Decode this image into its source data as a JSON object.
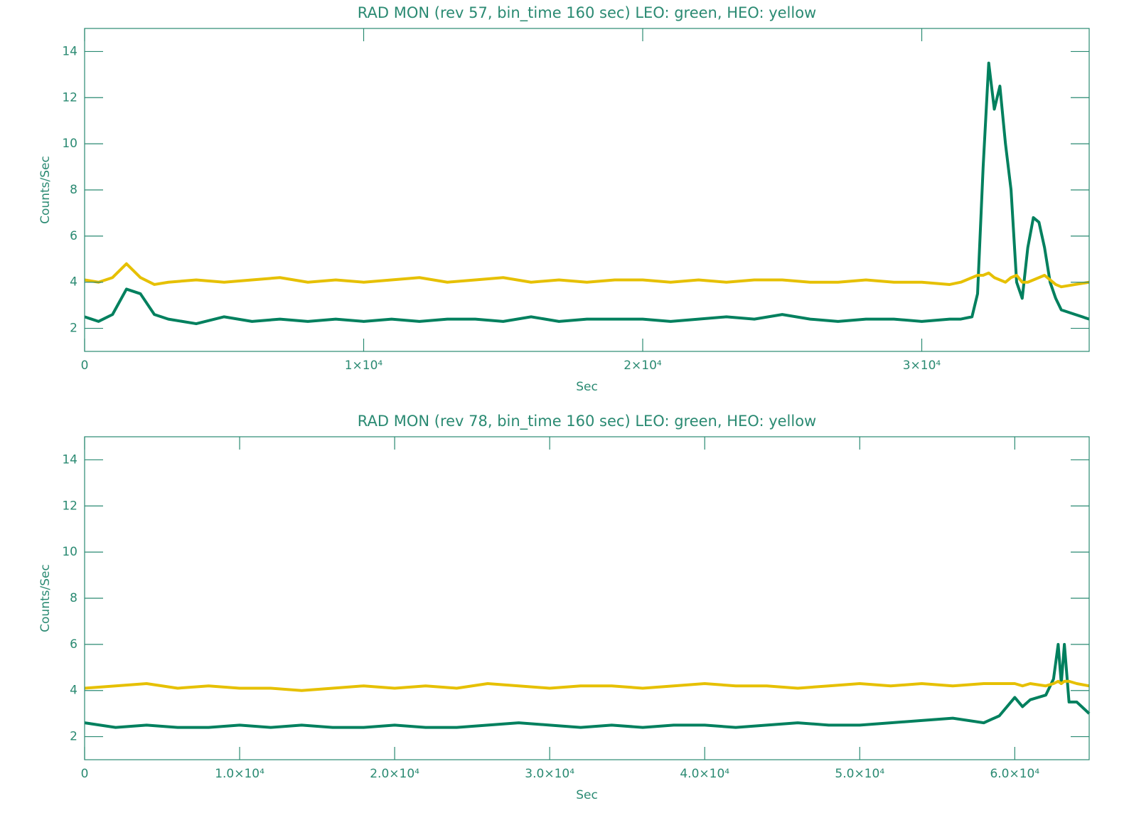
{
  "chart_data": [
    {
      "type": "line",
      "title": "RAD MON (rev 57, bin_time 160 sec) LEO: green, HEO: yellow",
      "xlabel": "Sec",
      "ylabel": "Counts/Sec",
      "x": [
        0,
        500,
        1000,
        1500,
        2000,
        2500,
        3000,
        4000,
        5000,
        6000,
        7000,
        8000,
        9000,
        10000,
        11000,
        12000,
        13000,
        14000,
        15000,
        16000,
        17000,
        18000,
        19000,
        20000,
        21000,
        22000,
        23000,
        24000,
        25000,
        26000,
        27000,
        28000,
        29000,
        30000,
        31000,
        31400,
        31800,
        32000,
        32200,
        32400,
        32600,
        32800,
        33000,
        33200,
        33400,
        33600,
        33800,
        34000,
        34200,
        34400,
        34600,
        34800,
        35000,
        35500,
        36000
      ],
      "series": [
        {
          "color": "#00805e",
          "values": [
            2.5,
            2.3,
            2.6,
            3.7,
            3.5,
            2.6,
            2.4,
            2.2,
            2.5,
            2.3,
            2.4,
            2.3,
            2.4,
            2.3,
            2.4,
            2.3,
            2.4,
            2.4,
            2.3,
            2.5,
            2.3,
            2.4,
            2.4,
            2.4,
            2.3,
            2.4,
            2.5,
            2.4,
            2.6,
            2.4,
            2.3,
            2.4,
            2.4,
            2.3,
            2.4,
            2.4,
            2.5,
            3.5,
            9,
            13.5,
            11.5,
            12.5,
            10,
            8,
            4,
            3.3,
            5.5,
            6.8,
            6.6,
            5.5,
            4,
            3.3,
            2.8,
            2.6,
            2.4
          ]
        },
        {
          "color": "#e6c000",
          "values": [
            4.1,
            4.0,
            4.2,
            4.8,
            4.2,
            3.9,
            4.0,
            4.1,
            4.0,
            4.1,
            4.2,
            4.0,
            4.1,
            4.0,
            4.1,
            4.2,
            4.0,
            4.1,
            4.2,
            4.0,
            4.1,
            4.0,
            4.1,
            4.1,
            4.0,
            4.1,
            4.0,
            4.1,
            4.1,
            4.0,
            4.0,
            4.1,
            4.0,
            4.0,
            3.9,
            4.0,
            4.2,
            4.3,
            4.3,
            4.4,
            4.2,
            4.1,
            4.0,
            4.2,
            4.3,
            4.0,
            4.0,
            4.1,
            4.2,
            4.3,
            4.1,
            3.9,
            3.8,
            3.9,
            4.0
          ]
        }
      ],
      "xlim": [
        0,
        36000
      ],
      "xticks": [
        0,
        {
          "value": 10000,
          "label": "1×10⁴"
        },
        {
          "value": 20000,
          "label": "2×10⁴"
        },
        {
          "value": 30000,
          "label": "3×10⁴"
        }
      ],
      "ylim": [
        1,
        15
      ],
      "yticks": [
        2,
        4,
        6,
        8,
        10,
        12,
        14
      ]
    },
    {
      "type": "line",
      "title": "RAD MON (rev 78, bin_time 160 sec) LEO: green, HEO: yellow",
      "xlabel": "Sec",
      "ylabel": "Counts/Sec",
      "x": [
        0,
        2000,
        4000,
        6000,
        8000,
        10000,
        12000,
        14000,
        16000,
        18000,
        20000,
        22000,
        24000,
        26000,
        28000,
        30000,
        32000,
        34000,
        36000,
        38000,
        40000,
        42000,
        44000,
        46000,
        48000,
        50000,
        52000,
        54000,
        56000,
        58000,
        59000,
        60000,
        60500,
        61000,
        62000,
        62500,
        62800,
        63000,
        63200,
        63500,
        64000,
        64800
      ],
      "series": [
        {
          "color": "#00805e",
          "values": [
            2.6,
            2.4,
            2.5,
            2.4,
            2.4,
            2.5,
            2.4,
            2.5,
            2.4,
            2.4,
            2.5,
            2.4,
            2.4,
            2.5,
            2.6,
            2.5,
            2.4,
            2.5,
            2.4,
            2.5,
            2.5,
            2.4,
            2.5,
            2.6,
            2.5,
            2.5,
            2.6,
            2.7,
            2.8,
            2.6,
            2.9,
            3.7,
            3.3,
            3.6,
            3.8,
            4.5,
            6.0,
            4.3,
            6.0,
            3.5,
            3.5,
            3.0
          ]
        },
        {
          "color": "#e6c000",
          "values": [
            4.1,
            4.2,
            4.3,
            4.1,
            4.2,
            4.1,
            4.1,
            4.0,
            4.1,
            4.2,
            4.1,
            4.2,
            4.1,
            4.3,
            4.2,
            4.1,
            4.2,
            4.2,
            4.1,
            4.2,
            4.3,
            4.2,
            4.2,
            4.1,
            4.2,
            4.3,
            4.2,
            4.3,
            4.2,
            4.3,
            4.3,
            4.3,
            4.2,
            4.3,
            4.2,
            4.3,
            4.4,
            4.3,
            4.4,
            4.4,
            4.3,
            4.2
          ]
        }
      ],
      "xlim": [
        0,
        64800
      ],
      "xticks": [
        0,
        {
          "value": 10000,
          "label": "1.0×10⁴"
        },
        {
          "value": 20000,
          "label": "2.0×10⁴"
        },
        {
          "value": 30000,
          "label": "3.0×10⁴"
        },
        {
          "value": 40000,
          "label": "4.0×10⁴"
        },
        {
          "value": 50000,
          "label": "5.0×10⁴"
        },
        {
          "value": 60000,
          "label": "6.0×10⁴"
        }
      ],
      "ylim": [
        1,
        15
      ],
      "yticks": [
        2,
        4,
        6,
        8,
        10,
        12,
        14
      ]
    }
  ]
}
